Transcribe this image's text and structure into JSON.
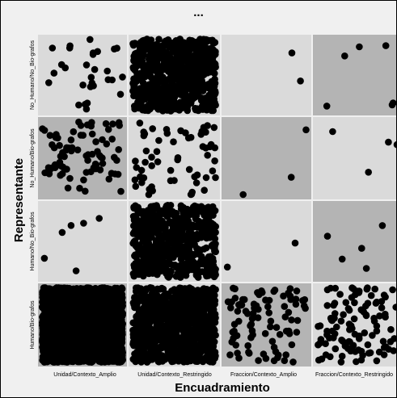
{
  "header": {
    "title": "..."
  },
  "colors": {
    "panel_background": "#f0f0f0",
    "cell_light": "#dadada",
    "cell_dark": "#b4b4b4",
    "grid_line": "#ffffff",
    "point": "#000000"
  },
  "chart_data": {
    "type": "scatter",
    "title": "",
    "xlabel": "Encuadramiento",
    "ylabel": "Representante",
    "x_categories": [
      "Unidad/Contexto_Amplio",
      "Unidad/Contexto_Restringido",
      "Fraccion/Contexto_Amplio",
      "Fraccion/Contexto_Restringido"
    ],
    "y_categories": [
      "Humano/Bio-grafos",
      "Humano/No_Bio-grafos",
      "No_Humano/Bio-grafos",
      "No_Humano/No_Bio-grafos"
    ],
    "grid": true,
    "legend": "none",
    "cells": [
      {
        "x": "Unidad/Contexto_Amplio",
        "y": "No_Humano/No_Bio-grafos",
        "count": 30,
        "shade": "light"
      },
      {
        "x": "Unidad/Contexto_Restringido",
        "y": "No_Humano/No_Bio-grafos",
        "count": 700,
        "shade": "light"
      },
      {
        "x": "Fraccion/Contexto_Amplio",
        "y": "No_Humano/No_Bio-grafos",
        "count": 2,
        "shade": "light"
      },
      {
        "x": "Fraccion/Contexto_Restringido",
        "y": "No_Humano/No_Bio-grafos",
        "count": 6,
        "shade": "dark"
      },
      {
        "x": "Unidad/Contexto_Amplio",
        "y": "No_Humano/Bio-grafos",
        "count": 80,
        "shade": "dark"
      },
      {
        "x": "Unidad/Contexto_Restringido",
        "y": "No_Humano/Bio-grafos",
        "count": 60,
        "shade": "light"
      },
      {
        "x": "Fraccion/Contexto_Amplio",
        "y": "No_Humano/Bio-grafos",
        "count": 3,
        "shade": "dark"
      },
      {
        "x": "Fraccion/Contexto_Restringido",
        "y": "No_Humano/Bio-grafos",
        "count": 4,
        "shade": "light"
      },
      {
        "x": "Unidad/Contexto_Amplio",
        "y": "Humano/No_Bio-grafos",
        "count": 6,
        "shade": "light"
      },
      {
        "x": "Unidad/Contexto_Restringido",
        "y": "Humano/No_Bio-grafos",
        "count": 600,
        "shade": "light"
      },
      {
        "x": "Fraccion/Contexto_Amplio",
        "y": "Humano/No_Bio-grafos",
        "count": 2,
        "shade": "light"
      },
      {
        "x": "Fraccion/Contexto_Restringido",
        "y": "Humano/No_Bio-grafos",
        "count": 5,
        "shade": "dark"
      },
      {
        "x": "Unidad/Contexto_Amplio",
        "y": "Humano/Bio-grafos",
        "count": 3000,
        "shade": "dark"
      },
      {
        "x": "Unidad/Contexto_Restringido",
        "y": "Humano/Bio-grafos",
        "count": 900,
        "shade": "light"
      },
      {
        "x": "Fraccion/Contexto_Amplio",
        "y": "Humano/Bio-grafos",
        "count": 90,
        "shade": "dark"
      },
      {
        "x": "Fraccion/Contexto_Restringido",
        "y": "Humano/Bio-grafos",
        "count": 110,
        "shade": "light"
      }
    ]
  }
}
